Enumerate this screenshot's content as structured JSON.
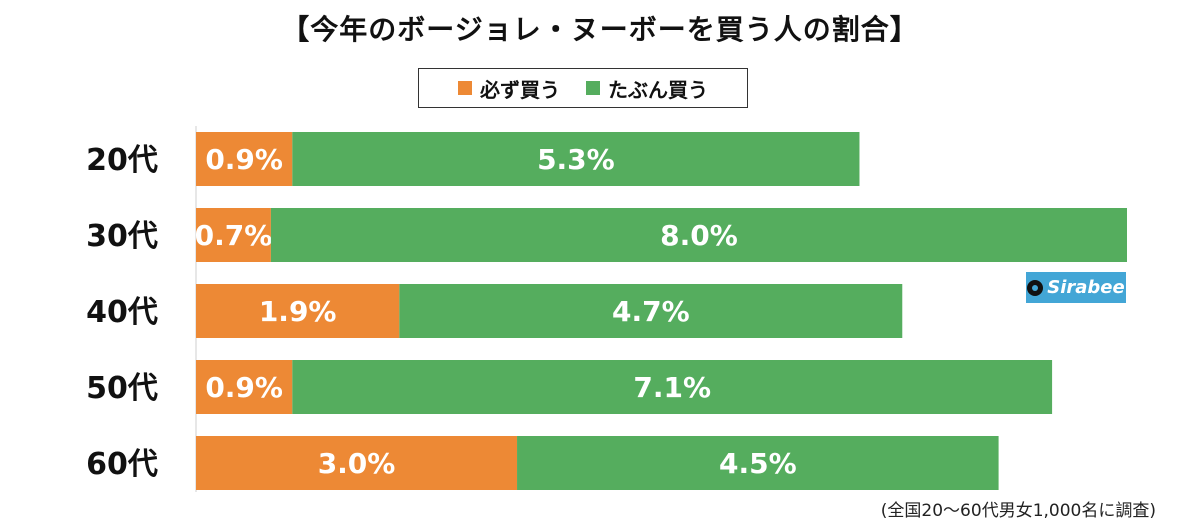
{
  "chart_data": {
    "type": "bar",
    "orientation": "horizontal",
    "stacked": true,
    "title": "【今年のボージョレ・ヌーボーを買う人の割合】",
    "categories": [
      "20代",
      "30代",
      "40代",
      "50代",
      "60代"
    ],
    "series": [
      {
        "name": "必ず買う",
        "color": "#ed8935",
        "values": [
          0.9,
          0.7,
          1.9,
          0.9,
          3.0
        ],
        "labels": [
          "0.9%",
          "0.7%",
          "1.9%",
          "0.9%",
          "3.0%"
        ]
      },
      {
        "name": "たぶん買う",
        "color": "#55ad5e",
        "values": [
          5.3,
          8.0,
          4.7,
          7.1,
          4.5
        ],
        "labels": [
          "5.3%",
          "8.0%",
          "4.7%",
          "7.1%",
          "4.5%"
        ]
      }
    ],
    "xlim": [
      0,
      8.7
    ],
    "legend_position": "top-center",
    "note": "(全国20〜60代男女1,000名に調査)"
  },
  "logo": {
    "text": "Sirabee"
  }
}
